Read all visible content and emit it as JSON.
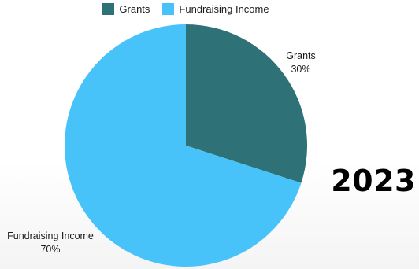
{
  "chart_data": {
    "type": "pie",
    "title": "",
    "slices": [
      {
        "label": "Grants",
        "value": 30,
        "percent_label": "30%",
        "color": "#2e7277"
      },
      {
        "label": "Fundraising Income",
        "value": 70,
        "percent_label": "70%",
        "color": "#48c3f9"
      }
    ],
    "legend_position": "top",
    "start_angle_deg": 0,
    "direction": "clockwise"
  },
  "year": "2023"
}
